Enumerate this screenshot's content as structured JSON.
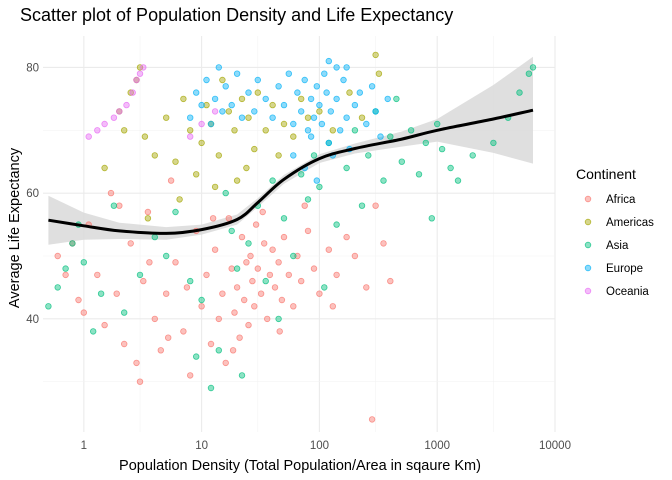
{
  "chart_data": {
    "type": "scatter",
    "title": "Scatter plot of Population Density and Life Expectancy",
    "xlabel": "Population Density (Total Population/Area in sqaure Km)",
    "ylabel": "Average Life Expectancy",
    "x_scale": "log10",
    "xlim": [
      0.45,
      10000
    ],
    "ylim": [
      22,
      85
    ],
    "x_ticks": [
      {
        "value": 1,
        "label": "1"
      },
      {
        "value": 10,
        "label": "10"
      },
      {
        "value": 100,
        "label": "100"
      },
      {
        "value": 1000,
        "label": "1000"
      },
      {
        "value": 10000,
        "label": "10000"
      }
    ],
    "y_ticks": [
      {
        "value": 40,
        "label": "40"
      },
      {
        "value": 60,
        "label": "60"
      },
      {
        "value": 80,
        "label": "80"
      }
    ],
    "grid": true,
    "legend": {
      "title": "Continent",
      "position": "right"
    },
    "series": [
      {
        "name": "Africa",
        "color": "#F8766D",
        "points": [
          [
            0.6,
            50
          ],
          [
            0.7,
            47
          ],
          [
            0.8,
            52
          ],
          [
            0.9,
            43
          ],
          [
            1.0,
            41
          ],
          [
            1.1,
            55
          ],
          [
            1.3,
            47
          ],
          [
            1.5,
            39
          ],
          [
            1.7,
            60
          ],
          [
            1.9,
            44
          ],
          [
            2.2,
            36
          ],
          [
            2.5,
            52
          ],
          [
            2.8,
            33
          ],
          [
            3.0,
            30
          ],
          [
            3.2,
            46
          ],
          [
            3.5,
            57
          ],
          [
            4.0,
            40
          ],
          [
            4.5,
            35
          ],
          [
            5.0,
            44
          ],
          [
            5.5,
            62
          ],
          [
            6.0,
            49
          ],
          [
            7.0,
            38
          ],
          [
            8.0,
            31
          ],
          [
            9.0,
            54
          ],
          [
            10,
            42
          ],
          [
            11,
            47
          ],
          [
            12,
            36
          ],
          [
            13,
            51
          ],
          [
            14,
            40
          ],
          [
            15,
            44
          ],
          [
            16,
            33
          ],
          [
            17,
            56
          ],
          [
            18,
            48
          ],
          [
            19,
            41
          ],
          [
            20,
            45
          ],
          [
            21,
            37
          ],
          [
            22,
            53
          ],
          [
            23,
            43
          ],
          [
            24,
            49
          ],
          [
            25,
            39
          ],
          [
            26,
            50
          ],
          [
            27,
            46
          ],
          [
            28,
            42
          ],
          [
            29,
            55
          ],
          [
            30,
            48
          ],
          [
            32,
            44
          ],
          [
            34,
            52
          ],
          [
            36,
            40
          ],
          [
            38,
            47
          ],
          [
            40,
            51
          ],
          [
            42,
            45
          ],
          [
            45,
            49
          ],
          [
            48,
            43
          ],
          [
            50,
            53
          ],
          [
            55,
            47
          ],
          [
            60,
            42
          ],
          [
            65,
            50
          ],
          [
            70,
            46
          ],
          [
            80,
            54
          ],
          [
            90,
            48
          ],
          [
            100,
            44
          ],
          [
            120,
            51
          ],
          [
            140,
            47
          ],
          [
            170,
            53
          ],
          [
            200,
            50
          ],
          [
            250,
            45
          ],
          [
            280,
            24
          ],
          [
            300,
            58
          ],
          [
            350,
            52
          ],
          [
            400,
            46
          ],
          [
            2.0,
            58
          ],
          [
            3.6,
            49
          ],
          [
            5.2,
            37
          ],
          [
            7.5,
            45
          ],
          [
            12.5,
            56
          ],
          [
            18.5,
            35
          ],
          [
            33,
            57
          ],
          [
            46,
            38
          ],
          [
            75,
            58
          ],
          [
            130,
            42
          ]
        ]
      },
      {
        "name": "Americas",
        "color": "#A3A500",
        "points": [
          [
            1.5,
            64
          ],
          [
            2.0,
            73
          ],
          [
            2.2,
            70
          ],
          [
            2.5,
            76
          ],
          [
            2.8,
            78
          ],
          [
            3.0,
            80
          ],
          [
            3.3,
            69
          ],
          [
            4.0,
            66
          ],
          [
            5.0,
            72
          ],
          [
            6.0,
            65
          ],
          [
            7.0,
            75
          ],
          [
            8.0,
            70
          ],
          [
            9.0,
            63
          ],
          [
            10,
            68
          ],
          [
            11,
            74
          ],
          [
            12,
            71
          ],
          [
            14,
            66
          ],
          [
            15,
            78
          ],
          [
            17,
            73
          ],
          [
            19,
            70
          ],
          [
            20,
            62
          ],
          [
            22,
            75
          ],
          [
            25,
            72
          ],
          [
            28,
            67
          ],
          [
            30,
            76
          ],
          [
            35,
            70
          ],
          [
            40,
            74
          ],
          [
            45,
            66
          ],
          [
            50,
            71
          ],
          [
            60,
            69
          ],
          [
            70,
            75
          ],
          [
            80,
            72
          ],
          [
            100,
            73
          ],
          [
            130,
            70
          ],
          [
            180,
            76
          ],
          [
            230,
            72
          ],
          [
            300,
            82
          ],
          [
            320,
            79
          ],
          [
            3.5,
            56
          ],
          [
            6.5,
            59
          ],
          [
            13,
            61
          ],
          [
            24,
            64
          ]
        ]
      },
      {
        "name": "Asia",
        "color": "#00BF7D",
        "points": [
          [
            0.5,
            42
          ],
          [
            0.6,
            45
          ],
          [
            0.7,
            48
          ],
          [
            0.8,
            52
          ],
          [
            0.9,
            55
          ],
          [
            1.0,
            49
          ],
          [
            1.2,
            38
          ],
          [
            1.4,
            44
          ],
          [
            1.8,
            58
          ],
          [
            2.2,
            41
          ],
          [
            3.0,
            47
          ],
          [
            4.0,
            53
          ],
          [
            5.0,
            50
          ],
          [
            6.0,
            57
          ],
          [
            8.0,
            46
          ],
          [
            10,
            43
          ],
          [
            12,
            29
          ],
          [
            14,
            35
          ],
          [
            16,
            60
          ],
          [
            18,
            54
          ],
          [
            20,
            48
          ],
          [
            25,
            52
          ],
          [
            30,
            58
          ],
          [
            35,
            46
          ],
          [
            40,
            62
          ],
          [
            50,
            56
          ],
          [
            60,
            50
          ],
          [
            70,
            63
          ],
          [
            80,
            59
          ],
          [
            90,
            66
          ],
          [
            100,
            61
          ],
          [
            120,
            68
          ],
          [
            140,
            55
          ],
          [
            170,
            64
          ],
          [
            200,
            70
          ],
          [
            230,
            58
          ],
          [
            260,
            66
          ],
          [
            300,
            73
          ],
          [
            350,
            62
          ],
          [
            400,
            69
          ],
          [
            450,
            75
          ],
          [
            500,
            65
          ],
          [
            600,
            70
          ],
          [
            700,
            63
          ],
          [
            800,
            68
          ],
          [
            900,
            56
          ],
          [
            1000,
            71
          ],
          [
            1100,
            67
          ],
          [
            1300,
            64
          ],
          [
            1500,
            62
          ],
          [
            2000,
            66
          ],
          [
            3000,
            68
          ],
          [
            4000,
            72
          ],
          [
            5000,
            76
          ],
          [
            6000,
            79
          ],
          [
            6500,
            80
          ],
          [
            9,
            34
          ],
          [
            22,
            31
          ],
          [
            45,
            40
          ],
          [
            110,
            45
          ]
        ]
      },
      {
        "name": "Europe",
        "color": "#00B0F6",
        "points": [
          [
            8,
            72
          ],
          [
            9,
            76
          ],
          [
            10,
            74
          ],
          [
            11,
            78
          ],
          [
            12,
            71
          ],
          [
            13,
            75
          ],
          [
            14,
            80
          ],
          [
            15,
            73
          ],
          [
            16,
            77
          ],
          [
            18,
            74
          ],
          [
            20,
            79
          ],
          [
            22,
            72
          ],
          [
            25,
            76
          ],
          [
            28,
            73
          ],
          [
            30,
            78
          ],
          [
            35,
            75
          ],
          [
            40,
            72
          ],
          [
            45,
            77
          ],
          [
            50,
            74
          ],
          [
            55,
            79
          ],
          [
            60,
            71
          ],
          [
            65,
            76
          ],
          [
            70,
            73
          ],
          [
            75,
            78
          ],
          [
            80,
            70
          ],
          [
            85,
            75
          ],
          [
            90,
            72
          ],
          [
            95,
            77
          ],
          [
            100,
            74
          ],
          [
            105,
            71
          ],
          [
            110,
            79
          ],
          [
            115,
            76
          ],
          [
            120,
            68
          ],
          [
            125,
            73
          ],
          [
            130,
            66
          ],
          [
            140,
            75
          ],
          [
            150,
            70
          ],
          [
            160,
            78
          ],
          [
            170,
            72
          ],
          [
            180,
            67
          ],
          [
            200,
            74
          ],
          [
            220,
            76
          ],
          [
            250,
            71
          ],
          [
            280,
            77
          ],
          [
            300,
            73
          ],
          [
            330,
            69
          ],
          [
            380,
            75
          ],
          [
            60,
            66
          ],
          [
            75,
            64
          ],
          [
            85,
            69
          ],
          [
            95,
            62
          ],
          [
            120,
            81
          ],
          [
            140,
            80
          ],
          [
            170,
            80
          ]
        ]
      },
      {
        "name": "Oceania",
        "color": "#E76BF3",
        "points": [
          [
            1.1,
            69
          ],
          [
            1.3,
            70
          ],
          [
            1.5,
            71
          ],
          [
            1.8,
            72
          ],
          [
            2.0,
            73
          ],
          [
            2.3,
            74
          ],
          [
            2.6,
            76
          ],
          [
            2.8,
            78
          ],
          [
            3.0,
            79
          ],
          [
            3.2,
            80
          ],
          [
            8,
            69
          ],
          [
            10,
            71
          ],
          [
            13,
            73
          ]
        ]
      }
    ],
    "smooth": {
      "color": "#000000",
      "ribbon_color": "#D9D9D9",
      "points": [
        [
          0.5,
          55.7
        ],
        [
          1,
          54.8
        ],
        [
          2,
          54.0
        ],
        [
          5,
          53.6
        ],
        [
          10,
          54.2
        ],
        [
          20,
          55.8
        ],
        [
          30,
          58.5
        ],
        [
          50,
          62.2
        ],
        [
          100,
          65.5
        ],
        [
          200,
          67.1
        ],
        [
          500,
          68.6
        ],
        [
          1000,
          70.0
        ],
        [
          3000,
          71.8
        ],
        [
          6500,
          73.2
        ]
      ],
      "band": [
        [
          0.5,
          51.8,
          59.6
        ],
        [
          1,
          52.6,
          56.9
        ],
        [
          2,
          52.7,
          55.3
        ],
        [
          5,
          52.6,
          54.6
        ],
        [
          10,
          53.4,
          55.0
        ],
        [
          20,
          55.0,
          56.6
        ],
        [
          30,
          57.8,
          59.2
        ],
        [
          50,
          61.5,
          62.9
        ],
        [
          100,
          64.8,
          66.2
        ],
        [
          200,
          66.3,
          67.9
        ],
        [
          500,
          67.4,
          69.8
        ],
        [
          1000,
          68.2,
          71.8
        ],
        [
          3000,
          66.4,
          77.2
        ],
        [
          6500,
          64.7,
          81.7
        ]
      ]
    }
  }
}
